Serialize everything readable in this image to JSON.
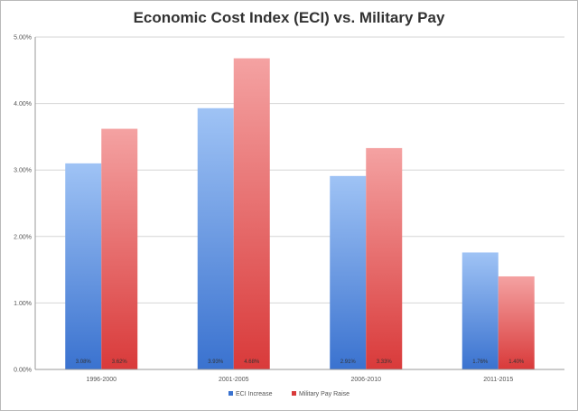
{
  "chart_data": {
    "type": "bar",
    "title": "Economic Cost Index (ECI) vs. Military Pay",
    "xlabel": "",
    "ylabel": "",
    "ylim": [
      0,
      5
    ],
    "y_ticks": [
      "0.00%",
      "1.00%",
      "2.00%",
      "3.00%",
      "4.00%",
      "5.00%"
    ],
    "grid": true,
    "legend_position": "bottom",
    "categories": [
      "1996-2000",
      "2001-2005",
      "2006-2010",
      "2011-2015"
    ],
    "series": [
      {
        "name": "ECI Increase",
        "color_top": "#9fc3f5",
        "color_bottom": "#3a72cf",
        "values": [
          3.1,
          3.93,
          2.91,
          1.76
        ],
        "labels": [
          "3.08%",
          "3.93%",
          "2.91%",
          "1.76%"
        ]
      },
      {
        "name": "Military Pay Raise",
        "color_top": "#f4a2a2",
        "color_bottom": "#d93a3a",
        "values": [
          3.62,
          4.68,
          3.33,
          1.4
        ],
        "labels": [
          "3.62%",
          "4.68%",
          "3.33%",
          "1.40%"
        ]
      }
    ]
  }
}
